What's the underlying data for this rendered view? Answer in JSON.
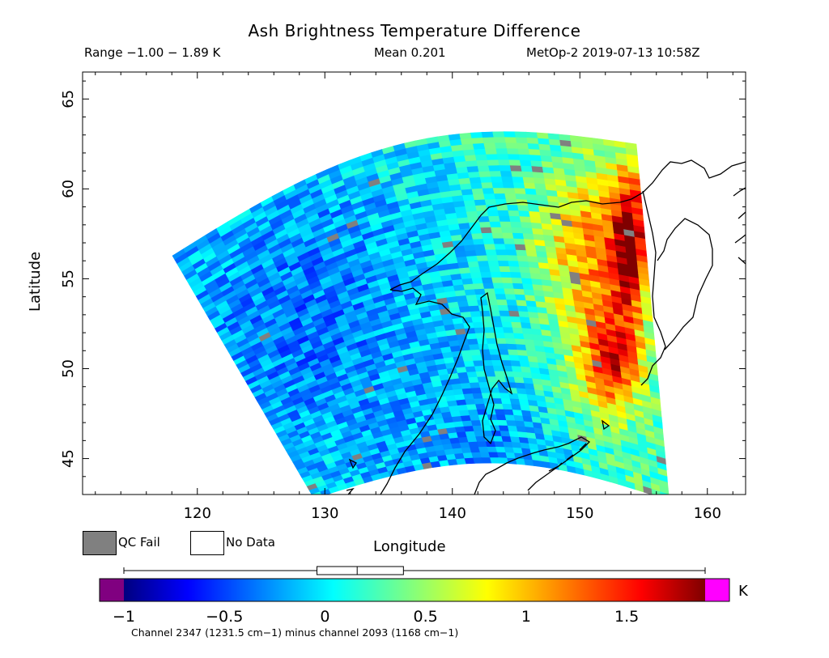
{
  "header": {
    "title": "Ash Brightness Temperature Difference",
    "range": "Range −1.00 − 1.89 K",
    "mean": "Mean 0.201",
    "satellite_time": "MetOp-2 2019-07-13 10:58Z"
  },
  "axes": {
    "xlabel": "Longitude",
    "ylabel": "Latitude",
    "x_ticks": [
      "120",
      "130",
      "140",
      "150",
      "160"
    ],
    "y_ticks": [
      "45",
      "50",
      "55",
      "60",
      "65"
    ],
    "x_range": [
      111,
      163
    ],
    "y_range": [
      43,
      66.5
    ]
  },
  "legend": {
    "qc_fail": "QC Fail",
    "no_data": "No Data",
    "qc_fail_color": "#808080",
    "no_data_color": "#ffffff"
  },
  "colorbar": {
    "unit": "K",
    "tick_labels": [
      "−1",
      "−0.5",
      "0",
      "0.5",
      "1",
      "1.5"
    ],
    "tick_values": [
      -1,
      -0.5,
      0,
      0.5,
      1,
      1.5
    ],
    "vmin": -1.0,
    "vmax": 1.89,
    "under_color": "#800080",
    "over_color": "#ff00ff",
    "caption": "Channel 2347 (1231.5 cm−1) minus channel 2093 (1168 cm−1)",
    "boxplot": {
      "min": -1.0,
      "q1": -0.04,
      "median": 0.16,
      "q3": 0.39,
      "max": 1.89
    }
  },
  "chart_data": {
    "type": "heatmap",
    "title": "Ash Brightness Temperature Difference",
    "xlabel": "Longitude",
    "ylabel": "Latitude",
    "xlim": [
      111,
      163
    ],
    "ylim": [
      43,
      66.5
    ],
    "color_range": [
      -1.0,
      1.89
    ],
    "mean": 0.201,
    "features": [
      {
        "region_center": [
          154.2,
          56.8
        ],
        "value_approx": 1.7
      },
      {
        "region_center": [
          153.0,
          52.0
        ],
        "value_approx": 1.3
      },
      {
        "region_center": [
          151.0,
          56.0
        ],
        "value_approx": 1.0
      }
    ]
  }
}
